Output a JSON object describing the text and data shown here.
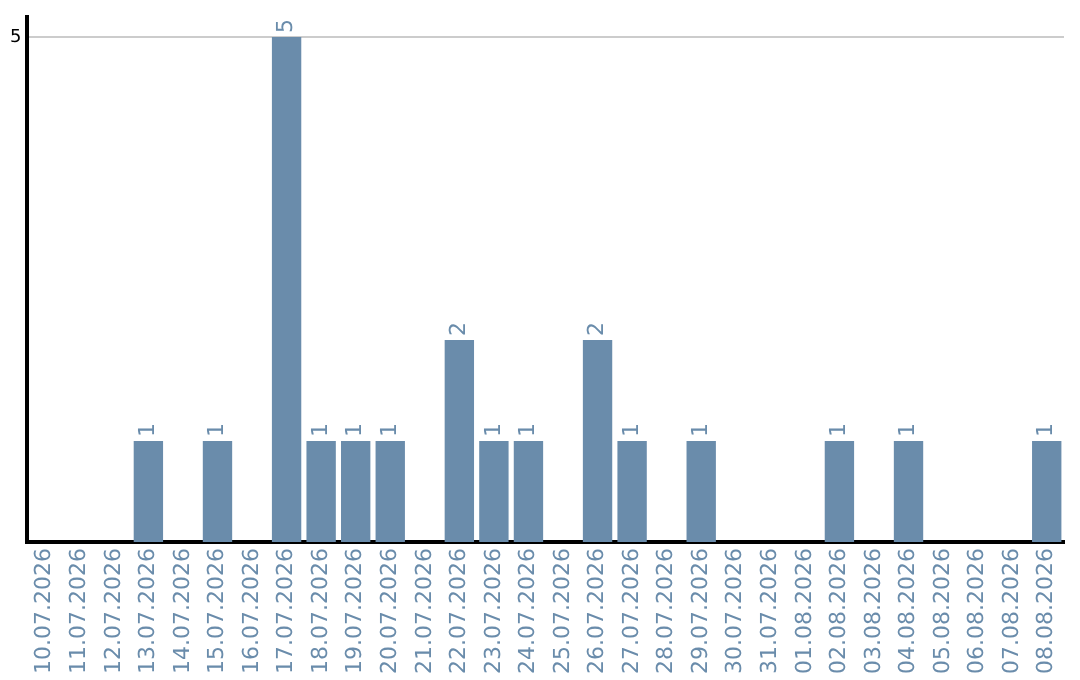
{
  "chart_data": {
    "type": "bar",
    "categories": [
      "10.07.2026",
      "11.07.2026",
      "12.07.2026",
      "13.07.2026",
      "14.07.2026",
      "15.07.2026",
      "16.07.2026",
      "17.07.2026",
      "18.07.2026",
      "19.07.2026",
      "20.07.2026",
      "21.07.2026",
      "22.07.2026",
      "23.07.2026",
      "24.07.2026",
      "25.07.2026",
      "26.07.2026",
      "27.07.2026",
      "28.07.2026",
      "29.07.2026",
      "30.07.2026",
      "31.07.2026",
      "01.08.2026",
      "02.08.2026",
      "03.08.2026",
      "04.08.2026",
      "05.08.2026",
      "06.08.2026",
      "07.08.2026",
      "08.08.2026"
    ],
    "values": [
      0,
      0,
      0,
      1,
      0,
      1,
      0,
      5,
      1,
      1,
      1,
      0,
      2,
      1,
      1,
      0,
      2,
      1,
      0,
      1,
      0,
      0,
      0,
      1,
      0,
      1,
      0,
      0,
      0,
      1
    ],
    "value_labels": [
      null,
      null,
      null,
      "1",
      null,
      "1",
      null,
      "5",
      "1",
      "1",
      "1",
      null,
      "2",
      "1",
      "1",
      null,
      "2",
      "1",
      null,
      "1",
      null,
      null,
      null,
      "1",
      null,
      "1",
      null,
      null,
      null,
      "1"
    ],
    "color": "#6a8cab",
    "ylim": [
      0,
      5.2
    ],
    "yticks": [
      5
    ],
    "grid": "y"
  }
}
